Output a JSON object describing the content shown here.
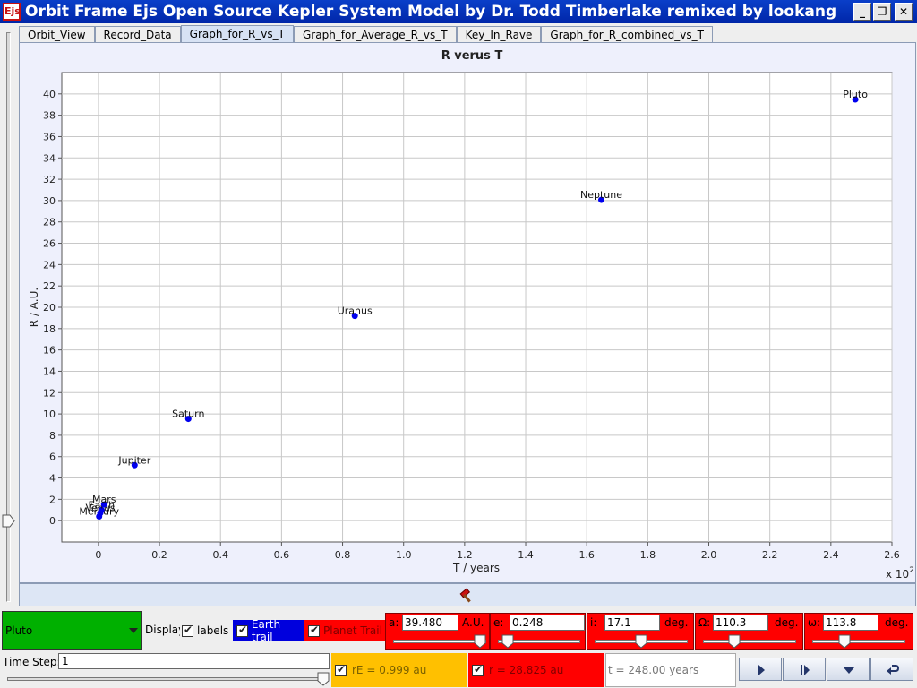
{
  "window": {
    "icon_text": "Ejs",
    "title": "Orbit Frame Ejs Open Source Kepler System Model by Dr. Todd Timberlake remixed by lookang"
  },
  "tabs": [
    "Orbit_View",
    "Record_Data",
    "Graph_for_R_vs_T",
    "Graph_for_Average_R_vs_T",
    "Key_In_Rave",
    "Graph_for_R_combined_vs_T"
  ],
  "active_tab": "Graph_for_R_vs_T",
  "chart_data": {
    "type": "scatter",
    "title": "R verus T",
    "xlabel": "T / years",
    "ylabel": "R / A.U.",
    "x_multiplier_label": "x 10",
    "x_multiplier_exp": "2",
    "xlim": [
      -0.12,
      2.6
    ],
    "ylim": [
      -2,
      42
    ],
    "xticks": [
      "0",
      "0.2",
      "0.4",
      "0.6",
      "0.8",
      "1.0",
      "1.2",
      "1.4",
      "1.6",
      "1.8",
      "2.0",
      "2.2",
      "2.4",
      "2.6"
    ],
    "yticks": [
      "0",
      "2",
      "4",
      "6",
      "8",
      "10",
      "12",
      "14",
      "16",
      "18",
      "20",
      "22",
      "24",
      "26",
      "28",
      "30",
      "32",
      "34",
      "36",
      "38",
      "40"
    ],
    "grid": true,
    "point_color": "#0000ee",
    "points": [
      {
        "label": "Mercury",
        "x": 0.0024,
        "y": 0.39
      },
      {
        "label": "Venus",
        "x": 0.0062,
        "y": 0.72
      },
      {
        "label": "Earth",
        "x": 0.01,
        "y": 1.0
      },
      {
        "label": "Mars",
        "x": 0.0188,
        "y": 1.52
      },
      {
        "label": "Jupiter",
        "x": 0.1186,
        "y": 5.2
      },
      {
        "label": "Saturn",
        "x": 0.2946,
        "y": 9.54
      },
      {
        "label": "Uranus",
        "x": 0.8401,
        "y": 19.19
      },
      {
        "label": "Neptune",
        "x": 1.6479,
        "y": 30.07
      },
      {
        "label": "Pluto",
        "x": 2.48,
        "y": 39.48
      }
    ]
  },
  "controls": {
    "planet_selected": "Pluto",
    "display_label": "Display",
    "labels_label": "labels",
    "earth_trail_label": "Earth trail",
    "planet_trail_label": "Planet Trail",
    "params": [
      {
        "name": "a",
        "label": "a:",
        "value": "39.480",
        "unit": "A.U.",
        "level": 1.0
      },
      {
        "name": "e",
        "label": "e:",
        "value": "0.248",
        "unit": "",
        "level": 0.05
      },
      {
        "name": "i",
        "label": "i:",
        "value": "17.1",
        "unit": "deg.",
        "level": 0.5
      },
      {
        "name": "omega-cap",
        "label": "Ω:",
        "value": "110.3",
        "unit": "deg.",
        "level": 0.31
      },
      {
        "name": "omega",
        "label": "ω:",
        "value": "113.8",
        "unit": "deg.",
        "level": 0.32
      }
    ],
    "time_step_label": "Time Step:",
    "time_step_value": "1",
    "time_step_level": 1.0,
    "rE_text": "rE = 0.999 au",
    "r_text": "r = 28.825 au",
    "t_text": "t = 248.00 years"
  },
  "colors": {
    "planet_select": "#00b000",
    "earth_trail": "#0000dd",
    "planet_trail": "#ff0000",
    "param_bg": "#ff0000",
    "rE_bg": "#ffc000"
  }
}
